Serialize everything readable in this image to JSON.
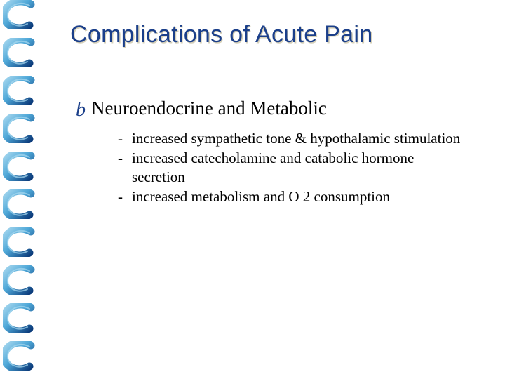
{
  "colors": {
    "background": "#ffffff",
    "title_color": "#1b3f8a",
    "title_shadow": "#d6d0b8",
    "bullet_color": "#1b3f8a",
    "text_color": "#000000",
    "spiral_dark": "#0a3a7a",
    "spiral_light": "#4fa8d8",
    "spiral_highlight": "#a8d8ef"
  },
  "typography": {
    "title_fontsize": 34,
    "heading_fontsize": 27,
    "bullet_fontsize": 28,
    "body_fontsize": 21
  },
  "spiral": {
    "ring_count": 10,
    "ring_spacing": 54
  },
  "title": "Complications of Acute Pain",
  "section": {
    "bullet_glyph": "b",
    "heading": "Neuroendocrine and Metabolic",
    "items": [
      "increased sympathetic tone & hypothalamic stimulation",
      "increased catecholamine and catabolic hormone secretion",
      "increased metabolism and O 2 consumption"
    ],
    "dash": "-"
  }
}
